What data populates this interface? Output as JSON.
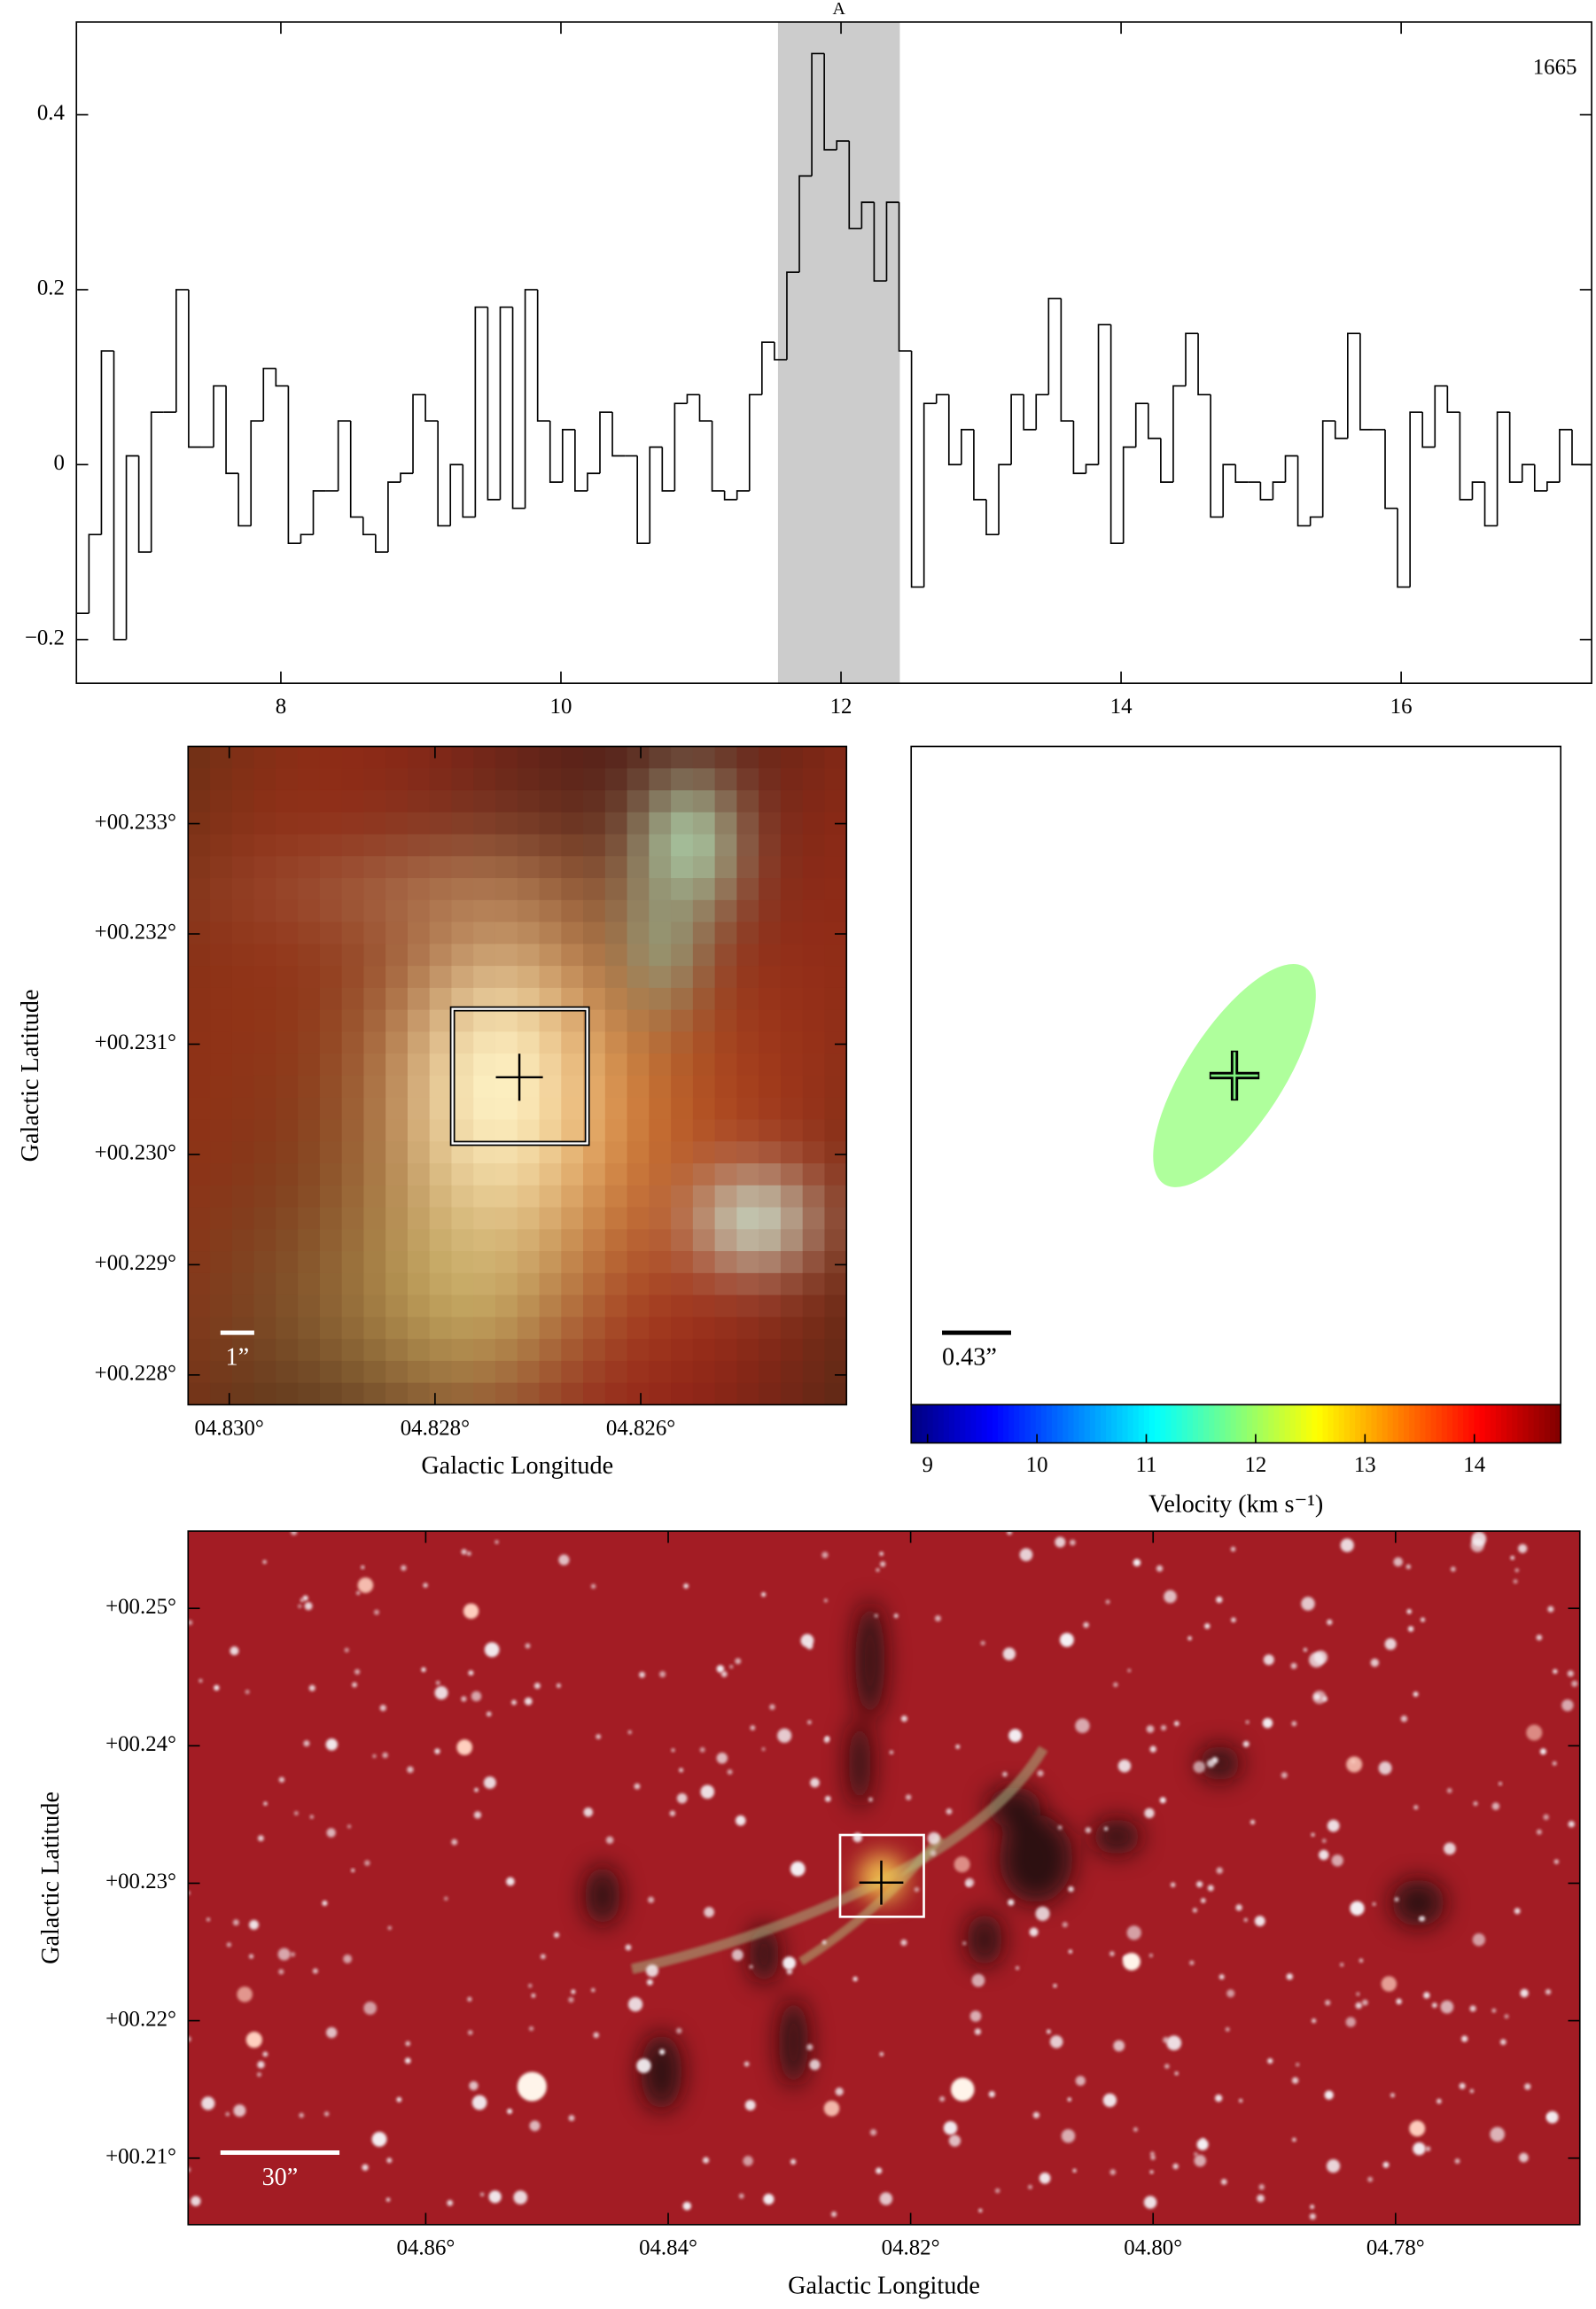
{
  "chart_data": [
    {
      "type": "step",
      "x": [
        6.585,
        6.674,
        6.763,
        6.852,
        6.941,
        7.03,
        7.119,
        7.208,
        7.297,
        7.386,
        7.475,
        7.564,
        7.653,
        7.742,
        7.831,
        7.92,
        8.009,
        8.098,
        8.187,
        8.276,
        8.365,
        8.454,
        8.543,
        8.632,
        8.721,
        8.81,
        8.899,
        8.988,
        9.077,
        9.166,
        9.255,
        9.344,
        9.433,
        9.522,
        9.611,
        9.7,
        9.789,
        9.878,
        9.967,
        10.056,
        10.145,
        10.234,
        10.323,
        10.412,
        10.501,
        10.59,
        10.679,
        10.768,
        10.857,
        10.946,
        11.035,
        11.124,
        11.213,
        11.302,
        11.391,
        11.48,
        11.569,
        11.658,
        11.747,
        11.836,
        11.925,
        12.014,
        12.103,
        12.192,
        12.281,
        12.37,
        12.459,
        12.548,
        12.637,
        12.726,
        12.815,
        12.904,
        12.993,
        13.082,
        13.171,
        13.26,
        13.349,
        13.438,
        13.527,
        13.616,
        13.705,
        13.794,
        13.883,
        13.972,
        14.061,
        14.15,
        14.239,
        14.328,
        14.417,
        14.506,
        14.595,
        14.684,
        14.773,
        14.862,
        14.951,
        15.04,
        15.129,
        15.218,
        15.307,
        15.396,
        15.485,
        15.574,
        15.663,
        15.752,
        15.841,
        15.93,
        16.019,
        16.108,
        16.197,
        16.286,
        16.375,
        16.464,
        16.553,
        16.642,
        16.731,
        16.82,
        16.909,
        16.998,
        17.087,
        17.176,
        17.265,
        17.354
      ],
      "values": [
        -0.17,
        -0.08,
        0.13,
        -0.2,
        0.01,
        -0.1,
        0.06,
        0.06,
        0.2,
        0.02,
        0.02,
        0.09,
        -0.01,
        -0.07,
        0.05,
        0.11,
        0.09,
        -0.09,
        -0.08,
        -0.03,
        -0.03,
        0.05,
        -0.06,
        -0.08,
        -0.1,
        -0.02,
        -0.01,
        0.08,
        0.05,
        -0.07,
        0.0,
        -0.06,
        0.18,
        -0.04,
        0.18,
        -0.05,
        0.2,
        0.05,
        -0.02,
        0.04,
        -0.03,
        -0.01,
        0.06,
        0.01,
        0.01,
        -0.09,
        0.02,
        -0.03,
        0.07,
        0.08,
        0.05,
        -0.03,
        -0.04,
        -0.03,
        0.08,
        0.14,
        0.12,
        0.22,
        0.33,
        0.47,
        0.36,
        0.37,
        0.27,
        0.3,
        0.21,
        0.3,
        0.13,
        -0.14,
        0.07,
        0.08,
        0.0,
        0.04,
        -0.04,
        -0.08,
        0.0,
        0.08,
        0.04,
        0.08,
        0.19,
        0.05,
        -0.01,
        0.0,
        0.16,
        -0.09,
        0.02,
        0.07,
        0.03,
        -0.02,
        0.09,
        0.15,
        0.08,
        -0.06,
        0.0,
        -0.02,
        -0.02,
        -0.04,
        -0.02,
        0.01,
        -0.07,
        -0.06,
        0.05,
        0.03,
        0.15,
        0.04,
        0.04,
        -0.05,
        -0.14,
        0.06,
        0.02,
        0.09,
        0.06,
        -0.04,
        -0.02,
        -0.07,
        0.06,
        -0.02,
        0.0,
        -0.03,
        -0.02,
        0.04,
        0.0,
        0.0
      ],
      "color": "#000000",
      "xlim": [
        6.54,
        17.36
      ],
      "ylim": [
        -0.25,
        0.506
      ],
      "xticks": [
        8,
        10,
        12,
        14,
        16
      ],
      "yticks": [
        {
          "value": -0.2,
          "label": "−0.2"
        },
        0,
        0.2,
        0.4
      ],
      "shade": {
        "label": "A",
        "range": [
          11.55,
          12.42
        ],
        "color": "#cccccc"
      },
      "annotation": "1665"
    },
    {
      "type": "image",
      "xlabel": "Galactic Longitude",
      "ylabel": "Galactic Latitude",
      "xlim": [
        4.8304,
        4.824
      ],
      "ylim": [
        0.22773,
        0.2337
      ],
      "xticks": [
        {
          "value": 4.83,
          "label": "04.830°"
        },
        {
          "value": 4.828,
          "label": "04.828°"
        },
        {
          "value": 4.826,
          "label": "04.826°"
        }
      ],
      "yticks": [
        {
          "value": 0.233,
          "label": "+00.233°"
        },
        {
          "value": 0.232,
          "label": "+00.232°"
        },
        {
          "value": 0.231,
          "label": "+00.231°"
        },
        {
          "value": 0.23,
          "label": "+00.230°"
        },
        {
          "value": 0.229,
          "label": "+00.229°"
        },
        {
          "value": 0.228,
          "label": "+00.228°"
        }
      ],
      "marker": [
        4.82718,
        0.2307
      ],
      "box": [
        4.82783,
        4.82652,
        0.2301,
        0.23132
      ],
      "scalebar": "1”"
    },
    {
      "type": "velocity_map",
      "values": [
        11.9
      ],
      "scalebar": "0.43”",
      "clim": [
        8.85,
        14.79
      ],
      "cticks": [
        9,
        10,
        11,
        12,
        13,
        14
      ],
      "clabel": "Velocity (km s⁻¹)"
    },
    {
      "type": "image",
      "xlabel": "Galactic Longitude",
      "ylabel": "Galactic Latitude",
      "xlim": [
        4.8796,
        4.7648
      ],
      "ylim": [
        0.20516,
        0.25562
      ],
      "xticks": [
        {
          "value": 4.86,
          "label": "04.86°"
        },
        {
          "value": 4.84,
          "label": "04.84°"
        },
        {
          "value": 4.82,
          "label": "04.82°"
        },
        {
          "value": 4.8,
          "label": "04.80°"
        },
        {
          "value": 4.78,
          "label": "04.78°"
        }
      ],
      "yticks": [
        {
          "value": 0.25,
          "label": "+00.25°"
        },
        {
          "value": 0.24,
          "label": "+00.24°"
        },
        {
          "value": 0.23,
          "label": "+00.23°"
        },
        {
          "value": 0.22,
          "label": "+00.22°"
        },
        {
          "value": 0.21,
          "label": "+00.21°"
        }
      ],
      "marker": [
        4.82242,
        0.23005
      ],
      "box": [
        4.82582,
        4.81891,
        0.22756,
        0.23351
      ],
      "scalebar": "30”"
    }
  ]
}
